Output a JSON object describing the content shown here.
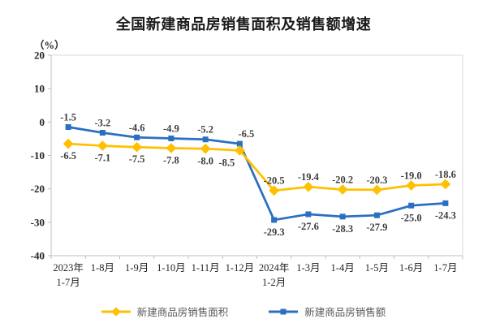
{
  "page": {
    "title": "全国新建商品房销售面积及销售额增速",
    "unit_label": "（%）"
  },
  "chart_data": {
    "type": "line",
    "title": "全国新建商品房销售面积及销售额增速",
    "ylabel": "（%）",
    "categories": [
      "2023年\n1-7月",
      "1-8月",
      "1-9月",
      "1-10月",
      "1-11月",
      "1-12月",
      "2024年\n1-2月",
      "1-3月",
      "1-4月",
      "1-5月",
      "1-6月",
      "1-7月"
    ],
    "series": [
      {
        "name": "新建商品房销售面积",
        "color": "#FFC000",
        "marker": "diamond",
        "values": [
          -6.5,
          -7.1,
          -7.5,
          -7.8,
          -8.0,
          -8.5,
          -20.5,
          -19.4,
          -20.2,
          -20.3,
          -19.0,
          -18.6
        ],
        "label_dx": {
          "5": -16
        }
      },
      {
        "name": "新建商品房销售额",
        "color": "#2B6FC2",
        "marker": "square",
        "values": [
          -1.5,
          -3.2,
          -4.6,
          -4.9,
          -5.2,
          -6.5,
          -29.3,
          -27.6,
          -28.3,
          -27.9,
          -25.0,
          -24.3
        ],
        "label_dx": {
          "5": 8
        }
      }
    ],
    "ylim": [
      -40,
      20
    ],
    "ytick_step": 10,
    "grid": false,
    "data_labels": true,
    "legend_position": "bottom",
    "axis_color": "#bfbfbf",
    "border_color": "#d9d9d9"
  }
}
